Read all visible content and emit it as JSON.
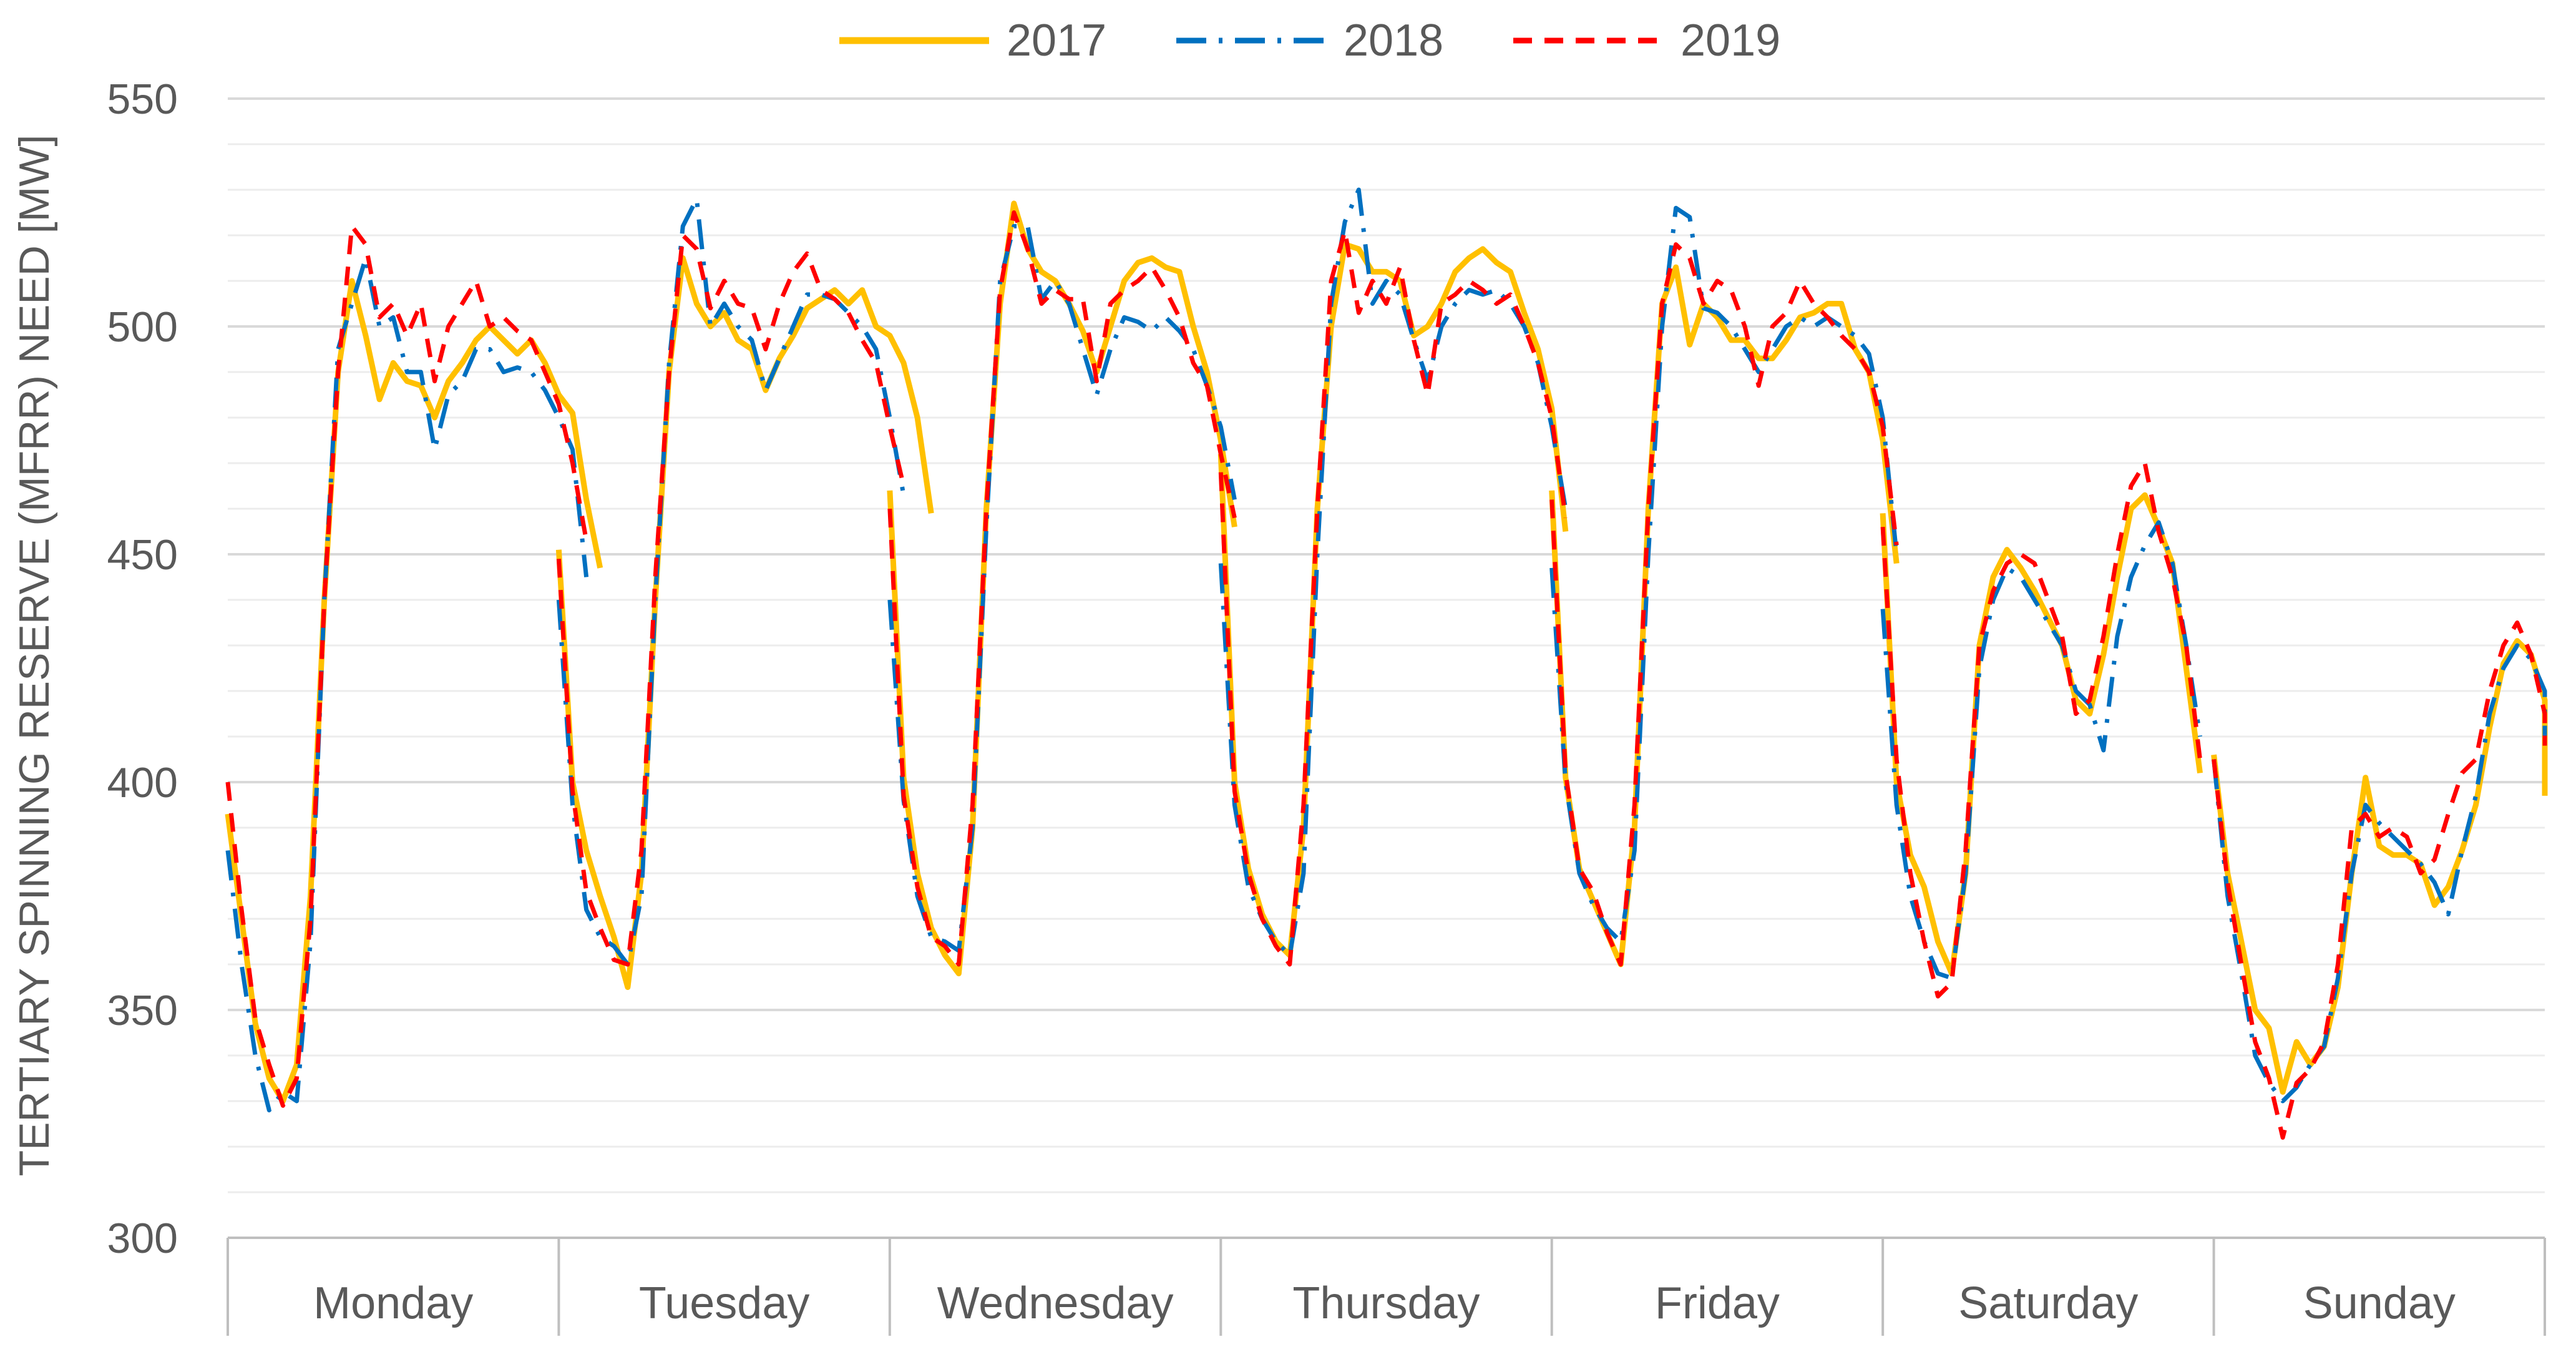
{
  "chart_data": {
    "type": "line",
    "title": "",
    "xlabel": "",
    "ylabel": "TERTIARY  SPINNING RESERVE (MFRR) NEED [MW]",
    "ylim": [
      300,
      550
    ],
    "yticks": [
      300,
      350,
      400,
      450,
      500,
      550
    ],
    "minor_grid_step": 10,
    "grid": true,
    "legend_position": "top",
    "categories": [
      "Monday",
      "Tuesday",
      "Wednesday",
      "Thursday",
      "Friday",
      "Saturday",
      "Sunday"
    ],
    "x_unit": "hour of week (24 points per day)",
    "series": [
      {
        "name": "2017",
        "color": "#ffc000",
        "style": "solid",
        "values": [
          [
            393,
            370,
            347,
            335,
            330,
            338,
            375,
            440,
            490,
            510,
            498,
            484,
            492,
            488,
            487,
            480,
            488,
            492,
            497,
            500,
            497,
            494,
            497,
            492,
            485,
            481,
            462,
            447
          ],
          [
            451,
            400,
            385,
            375,
            366,
            355,
            380,
            440,
            490,
            515,
            505,
            500,
            503,
            497,
            495,
            486,
            493,
            498,
            504,
            506,
            508,
            505,
            508,
            500,
            498,
            492,
            480,
            459
          ],
          [
            464,
            401,
            380,
            368,
            362,
            358,
            390,
            460,
            505,
            527,
            517,
            512,
            510,
            505,
            499,
            490,
            500,
            510,
            514,
            515,
            513,
            512,
            500,
            490,
            475,
            456
          ],
          [
            472,
            400,
            381,
            371,
            365,
            362,
            390,
            460,
            500,
            518,
            517,
            512,
            512,
            510,
            498,
            500,
            505,
            512,
            515,
            517,
            514,
            512,
            503,
            495,
            482,
            455
          ],
          [
            464,
            401,
            381,
            374,
            367,
            360,
            390,
            460,
            505,
            513,
            496,
            505,
            502,
            497,
            497,
            493,
            493,
            497,
            502,
            503,
            505,
            505,
            495,
            490,
            475,
            448
          ],
          [
            459,
            400,
            384,
            377,
            365,
            358,
            380,
            430,
            445,
            451,
            447,
            442,
            436,
            430,
            418,
            415,
            428,
            445,
            460,
            463,
            456,
            448,
            425,
            402
          ],
          [
            406,
            380,
            365,
            350,
            346,
            332,
            343,
            338,
            342,
            355,
            380,
            401,
            386,
            384,
            384,
            382,
            373,
            377,
            385,
            395,
            412,
            426,
            431,
            428,
            418,
            397
          ]
        ]
      },
      {
        "name": "2018",
        "color": "#0070c0",
        "style": "dashdot",
        "values": [
          [
            385,
            360,
            340,
            328,
            332,
            330,
            365,
            440,
            495,
            505,
            515,
            500,
            502,
            490,
            490,
            473,
            485,
            488,
            495,
            495,
            490,
            491,
            490,
            486,
            480,
            473,
            445
          ],
          [
            440,
            395,
            372,
            366,
            364,
            360,
            375,
            440,
            492,
            522,
            528,
            500,
            505,
            500,
            497,
            486,
            493,
            500,
            507,
            507,
            506,
            503,
            500,
            495,
            480,
            463
          ],
          [
            440,
            396,
            375,
            366,
            365,
            363,
            390,
            456,
            510,
            522,
            522,
            506,
            510,
            505,
            495,
            485,
            495,
            502,
            501,
            499,
            502,
            499,
            495,
            487,
            478,
            462
          ],
          [
            448,
            395,
            377,
            370,
            365,
            362,
            380,
            450,
            505,
            523,
            530,
            505,
            510,
            507,
            497,
            488,
            500,
            505,
            508,
            507,
            508,
            505,
            500,
            492,
            478,
            460
          ],
          [
            447,
            400,
            380,
            373,
            368,
            365,
            385,
            450,
            500,
            526,
            524,
            504,
            503,
            500,
            495,
            490,
            495,
            500,
            502,
            500,
            502,
            500,
            498,
            494,
            480,
            450
          ],
          [
            438,
            395,
            375,
            365,
            358,
            357,
            380,
            425,
            440,
            447,
            445,
            440,
            435,
            430,
            420,
            417,
            407,
            432,
            445,
            452,
            457,
            448,
            430,
            410
          ],
          [
            405,
            375,
            358,
            340,
            334,
            330,
            333,
            338,
            342,
            357,
            380,
            395,
            391,
            388,
            385,
            382,
            378,
            371,
            385,
            397,
            415,
            425,
            430,
            427,
            420,
            410
          ]
        ]
      },
      {
        "name": "2019",
        "color": "#ff0000",
        "style": "dashed",
        "values": [
          [
            400,
            372,
            348,
            338,
            329,
            335,
            370,
            440,
            490,
            522,
            518,
            502,
            505,
            498,
            505,
            488,
            500,
            505,
            510,
            500,
            502,
            499,
            497,
            490,
            483,
            470,
            453
          ],
          [
            449,
            398,
            376,
            368,
            361,
            360,
            385,
            445,
            490,
            520,
            517,
            504,
            510,
            505,
            504,
            495,
            505,
            512,
            516,
            508,
            506,
            503,
            497,
            492,
            478,
            465
          ],
          [
            460,
            397,
            377,
            366,
            364,
            360,
            395,
            460,
            508,
            525,
            517,
            505,
            508,
            506,
            506,
            488,
            505,
            508,
            510,
            513,
            508,
            502,
            492,
            487,
            472,
            458
          ],
          [
            468,
            398,
            380,
            370,
            364,
            360,
            395,
            460,
            510,
            521,
            503,
            510,
            505,
            513,
            497,
            485,
            505,
            507,
            510,
            508,
            505,
            507,
            500,
            492,
            480,
            458
          ],
          [
            462,
            402,
            381,
            376,
            367,
            360,
            395,
            460,
            505,
            518,
            515,
            505,
            510,
            508,
            500,
            487,
            500,
            503,
            510,
            505,
            502,
            498,
            495,
            490,
            478,
            452
          ],
          [
            456,
            405,
            380,
            365,
            353,
            356,
            385,
            430,
            442,
            448,
            450,
            448,
            440,
            432,
            415,
            418,
            432,
            450,
            465,
            470,
            455,
            445,
            430,
            405
          ],
          [
            405,
            378,
            360,
            343,
            335,
            322,
            334,
            337,
            343,
            360,
            390,
            393,
            388,
            390,
            388,
            380,
            383,
            393,
            402,
            405,
            420,
            430,
            435,
            428,
            415,
            408
          ]
        ]
      }
    ]
  }
}
